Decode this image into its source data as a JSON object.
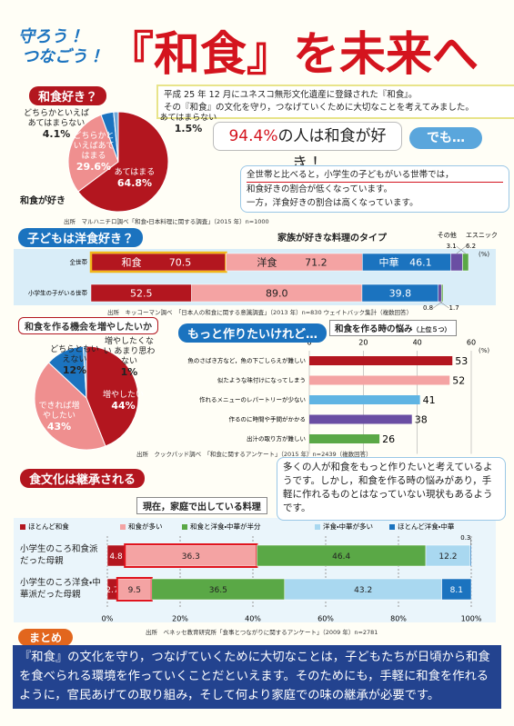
{
  "header": {
    "catch": [
      "守ろう！",
      "つなごう！"
    ],
    "title": "『和食』を未来へ"
  },
  "intro": [
    "平成 25 年 12 月にユネスコ無形文化遺産に登録された『和食』。",
    "その『和食』の文化を守り，つなげていくために大切なことを考えてみました。"
  ],
  "highlight": {
    "figure": "94.4%",
    "text": "の人は和食が好き！"
  },
  "but": "でも…",
  "note1": [
    "全世帯と比べると，小学生の子どもがいる世帯では，",
    "和食好きの割合が低くなっています。",
    "一方，洋食好きの割合は高くなっています。"
  ],
  "note2": "多くの人が和食をもっと作りたいと考えているようです。しかし，和食を作る時の悩みがあり，手軽に作れるものとはなっていない現状もあるようです。",
  "summary": {
    "heading": "まとめ",
    "text": "『和食』の文化を守り，つなげていくために大切なことは，子どもたちが日頃から和食を食べられる環境を作っていくことだといえます。そのためにも，手軽に和食を作れるように，官民あげての取り組み，そして何より家庭での味の継承が必要です。"
  },
  "chart_data": [
    {
      "type": "pie",
      "heading": "和食好き？",
      "title": "和食が好き",
      "categories": [
        "あてはまる",
        "どちらかといえばあてはまる",
        "どちらかといえばあてはまらない",
        "あてはまらない"
      ],
      "values": [
        64.8,
        29.6,
        4.1,
        1.5
      ],
      "value_labels": [
        "64.8%",
        "29.6%",
        "4.1%",
        "1.5%"
      ],
      "colors": [
        "#b3161f",
        "#ef8f8f",
        "#1b73bf",
        "#6fa9da"
      ],
      "source": "出所　マルハニチロ調べ「和食・日本料理に関する調査」（2015 年）n=1000"
    },
    {
      "type": "bar",
      "stacked": true,
      "heading": "子どもは洋食好き？",
      "title": "家族が好きな料理のタイプ",
      "unit": "(%)",
      "categories": [
        "全世帯",
        "小学生の子がいる世帯"
      ],
      "series": [
        {
          "name": "和食",
          "color": "#b3161f",
          "values": [
            70.5,
            52.5
          ]
        },
        {
          "name": "洋食",
          "color": "#f4a3a3",
          "values": [
            71.2,
            89.0
          ],
          "value_labels": [
            "71.2",
            "89.0"
          ]
        },
        {
          "name": "中華",
          "color": "#1b73bf",
          "values": [
            46.1,
            39.8
          ]
        },
        {
          "name": "エスニック",
          "color": "#6a4ea3",
          "values": [
            6.2,
            1.7
          ]
        },
        {
          "name": "その他",
          "color": "#5aa846",
          "values": [
            3.1,
            0.8
          ]
        }
      ],
      "source": "出所　キッコーマン調べ　「日本人の和食に関する意識調査」（2013 年）n=830 ウェイトバック集計（複数回答）"
    },
    {
      "type": "pie",
      "heading": "和食を作る機会を増やしたいか",
      "categories": [
        "増やしたい",
        "できれば増やしたい",
        "どちらともいえない",
        "増やしたくない あまり思わない"
      ],
      "values": [
        44,
        43,
        12,
        1
      ],
      "value_labels": [
        "44%",
        "43%",
        "12%",
        "1%"
      ],
      "colors": [
        "#b3161f",
        "#ef8f8f",
        "#1b73bf",
        "#6fa9da"
      ]
    },
    {
      "type": "bar",
      "heading": "もっと作りたいけれど…",
      "title": "和食を作る時の悩み",
      "subtitle": "（上位５つ）",
      "unit": "(%)",
      "categories": [
        "魚のさばき方など，魚の下ごしらえが難しい",
        "似たような味付けになってしまう",
        "作れるメニューのレパートリーが少ない",
        "作るのに時間や手間がかかる",
        "出汁の取り方が難しい"
      ],
      "values": [
        53,
        52,
        41,
        38,
        26
      ],
      "colors": [
        "#b3161f",
        "#f4a3a3",
        "#5fb4e3",
        "#6a4ea3",
        "#5aa846"
      ],
      "xlim": [
        0,
        60
      ],
      "xticks": [
        0,
        20,
        40,
        60
      ],
      "grid": true,
      "source": "出所　クックパッド調べ　「和食に関するアンケート」（2015 年）n=2439（複数回答）"
    },
    {
      "type": "bar",
      "stacked": true,
      "heading": "食文化は継承される",
      "title": "現在，家庭で出している料理",
      "categories": [
        "小学生のころ和食派だった母親",
        "小学生のころ洋食・中華派だった母親"
      ],
      "series": [
        {
          "name": "ほとんど和食",
          "color": "#b3161f",
          "values": [
            4.8,
            2.7
          ]
        },
        {
          "name": "和食が多い",
          "color": "#f4a3a3",
          "values": [
            36.3,
            9.5
          ]
        },
        {
          "name": "和食と洋食・中華が半分",
          "color": "#5aa846",
          "values": [
            46.4,
            36.5
          ]
        },
        {
          "name": "洋食・中華が多い",
          "color": "#a9d8f0",
          "values": [
            12.2,
            43.2
          ]
        },
        {
          "name": "ほとんど洋食・中華",
          "color": "#1b73bf",
          "values": [
            0.3,
            8.1
          ]
        }
      ],
      "xlim": [
        0,
        100
      ],
      "xticks": [
        {
          "value": 0,
          "label": "0%"
        },
        {
          "value": 20,
          "label": "20%"
        },
        {
          "value": 40,
          "label": "40%"
        },
        {
          "value": 60,
          "label": "60%"
        },
        {
          "value": 80,
          "label": "80%"
        },
        {
          "value": 100,
          "label": "100%"
        }
      ],
      "grid": true,
      "source": "出所　ベネッセ教育研究所「食事とつながりに関するアンケート」（2009 年）n=2781"
    }
  ]
}
